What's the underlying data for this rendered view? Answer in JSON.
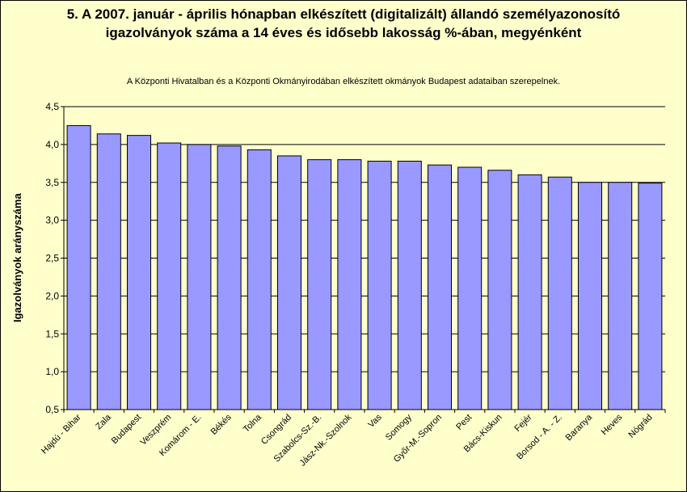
{
  "chart_data": {
    "type": "bar",
    "title": "5. A 2007. január - április hónapban elkészített (digitalizált) állandó személyazonosító igazolványok száma a 14 éves és idősebb lakosság %-ában, megyénként",
    "subtitle": "A  Központi Hivatalban és a Központi Okmányirodában elkészített  okmányok Budapest adataiban szerepelnek.",
    "ylabel": "Igazolványok arányszáma",
    "xlabel": "",
    "ylim": [
      0.5,
      4.5
    ],
    "yticks": [
      "0,5",
      "1,0",
      "1,5",
      "2,0",
      "2,5",
      "3,0",
      "3,5",
      "4,0",
      "4,5"
    ],
    "ytick_values": [
      0.5,
      1.0,
      1.5,
      2.0,
      2.5,
      3.0,
      3.5,
      4.0,
      4.5
    ],
    "grid": true,
    "bar_color": "#9999ff",
    "categories": [
      "Hajdú - Bihar",
      "Zala",
      "Budapest",
      "Veszprém",
      "Komárom - E.",
      "Békés",
      "Tolna",
      "Csongrád",
      "Szabolcs-Sz.-B.",
      "Jász-Nk.-Szolnok",
      "Vas",
      "Somogy",
      "Győr-M.-Sopron",
      "Pest",
      "Bács-Kiskun",
      "Fejér",
      "Borsod - A. - Z.",
      "Baranya",
      "Heves",
      "Nógrád"
    ],
    "values": [
      4.25,
      4.14,
      4.12,
      4.02,
      4.0,
      3.98,
      3.93,
      3.85,
      3.8,
      3.8,
      3.78,
      3.78,
      3.73,
      3.7,
      3.66,
      3.6,
      3.57,
      3.5,
      3.5,
      3.49
    ]
  }
}
